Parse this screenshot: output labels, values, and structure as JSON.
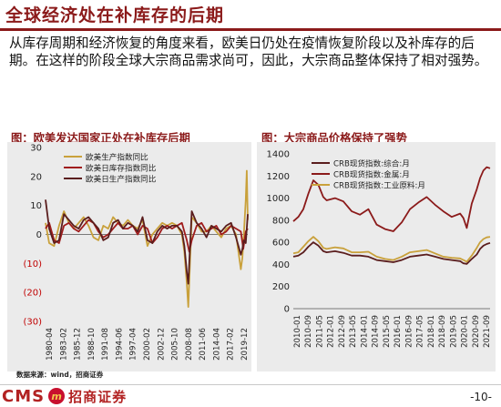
{
  "header": {
    "title": "全球经济处在补库存的后期"
  },
  "body": {
    "paragraph": "从库存周期和经济恢复的角度来看，欧美日仍处在疫情恢复阶段以及补库存的后期。在这样的阶段全球大宗商品需求尚可，因此，大宗商品整体保持了相对强势。"
  },
  "footer": {
    "source": "数据来源：wind，招商证券",
    "logo_cms": "CMS",
    "logo_cn": "招商证券",
    "page": "-10-"
  },
  "colors": {
    "brand": "#8b1a1a",
    "series_dark": "#5a1d1d",
    "series_gold": "#c9a13b",
    "series_red": "#a01c1c",
    "panel_bg": "#ebebeb"
  },
  "chart_data": [
    {
      "type": "line",
      "title": "图：欧美发达国家正处在补库存后期",
      "ylim": [
        -30,
        30
      ],
      "yticks": [
        "30",
        "20",
        "10",
        "0",
        "(10)",
        "(20)",
        "(30)"
      ],
      "xticks": [
        "1980-04",
        "1983-02",
        "1985-12",
        "1988-10",
        "1991-08",
        "1994-06",
        "1997-04",
        "2000-02",
        "2002-12",
        "2005-10",
        "2008-08",
        "2011-06",
        "2014-04",
        "2017-02",
        "2019-12"
      ],
      "xrange": [
        1980.25,
        2021.4
      ],
      "legend_position": "top-left",
      "series": [
        {
          "name": "欧美生产指数同比",
          "color": "#c9a13b",
          "x": [
            1980.25,
            1981,
            1982,
            1983,
            1984,
            1985,
            1986,
            1987,
            1988,
            1989,
            1990,
            1991,
            1992,
            1993,
            1994,
            1995,
            1996,
            1997,
            1998,
            1999,
            2000,
            2001,
            2002,
            2003,
            2004,
            2005,
            2006,
            2007,
            2008,
            2008.5,
            2009,
            2009.3,
            2010,
            2011,
            2012,
            2013,
            2014,
            2015,
            2016,
            2017,
            2018,
            2019,
            2020,
            2020.3,
            2020.6,
            2021,
            2021.2,
            2021.4
          ],
          "y": [
            4,
            -3,
            -4,
            3,
            8,
            4,
            2,
            4,
            6,
            3,
            -1,
            -2,
            3,
            2,
            6,
            4,
            3,
            5,
            3,
            2,
            5,
            -4,
            0,
            2,
            4,
            3,
            4,
            3,
            0,
            -6,
            -17,
            -25,
            6,
            4,
            1,
            1,
            3,
            1,
            -1,
            2,
            3,
            0,
            -12,
            -8,
            0,
            12,
            22,
            5
          ]
        },
        {
          "name": "欧美日库存指数同比",
          "color": "#a01c1c",
          "x": [
            1980.25,
            1981,
            1982,
            1983,
            1984,
            1985,
            1986,
            1987,
            1988,
            1989,
            1990,
            1991,
            1992,
            1993,
            1994,
            1995,
            1996,
            1997,
            1998,
            1999,
            2000,
            2001,
            2002,
            2003,
            2004,
            2005,
            2006,
            2007,
            2008,
            2009,
            2009.5,
            2010,
            2011,
            2012,
            2013,
            2014,
            2015,
            2016,
            2017,
            2018,
            2019,
            2020,
            2020.5,
            2021,
            2021.4
          ],
          "y": [
            2,
            4,
            -2,
            -3,
            3,
            4,
            2,
            1,
            3,
            5,
            4,
            1,
            -1,
            0,
            2,
            4,
            2,
            2,
            3,
            0,
            3,
            2,
            -3,
            -1,
            2,
            3,
            2,
            3,
            4,
            -2,
            -6,
            -2,
            3,
            4,
            1,
            2,
            3,
            0,
            1,
            3,
            2,
            1,
            -5,
            1,
            2
          ]
        },
        {
          "name": "欧美日生产指数同比",
          "color": "#5a1d1d",
          "x": [
            1980.25,
            1981,
            1982,
            1983,
            1984,
            1985,
            1986,
            1987,
            1988,
            1989,
            1990,
            1991,
            1992,
            1993,
            1994,
            1995,
            1996,
            1997,
            1998,
            1999,
            2000,
            2001,
            2002,
            2003,
            2004,
            2005,
            2006,
            2007,
            2008,
            2008.5,
            2009,
            2009.3,
            2010,
            2011,
            2012,
            2013,
            2014,
            2015,
            2016,
            2017,
            2018,
            2019,
            2020,
            2020.3,
            2020.6,
            2021,
            2021.2,
            2021.4
          ],
          "y": [
            12,
            2,
            -3,
            -2,
            7,
            5,
            3,
            2,
            5,
            6,
            4,
            2,
            -2,
            -1,
            4,
            5,
            2,
            4,
            3,
            1,
            6,
            -2,
            -3,
            1,
            3,
            2,
            3,
            3,
            1,
            -4,
            -13,
            -17,
            8,
            4,
            2,
            -1,
            3,
            2,
            1,
            3,
            4,
            -1,
            -7,
            -5,
            -2,
            -3,
            2,
            7
          ]
        }
      ]
    },
    {
      "type": "line",
      "title": "图：大宗商品价格保持了强势",
      "ylim": [
        0,
        1400
      ],
      "yticks": [
        "1400",
        "1200",
        "1000",
        "800",
        "600",
        "400",
        "200",
        "0"
      ],
      "xticks": [
        "2010-01",
        "2010-09",
        "2011-05",
        "2012-01",
        "2012-09",
        "2013-05",
        "2014-01",
        "2014-09",
        "2015-05",
        "2016-01",
        "2016-09",
        "2017-05",
        "2018-01",
        "2018-09",
        "2019-05",
        "2020-01",
        "2020-09",
        "2021-09"
      ],
      "xrange": [
        2010.0,
        2021.8
      ],
      "legend_position": "top-left",
      "series": [
        {
          "name": "CRB现货指数:综合:月",
          "color": "#5a1d1d",
          "x": [
            2010.0,
            2010.3,
            2010.6,
            2010.9,
            2011.2,
            2011.5,
            2011.8,
            2012.0,
            2012.5,
            2013.0,
            2013.5,
            2014.0,
            2014.5,
            2015.0,
            2015.5,
            2016.0,
            2016.5,
            2017.0,
            2017.5,
            2018.0,
            2018.5,
            2019.0,
            2019.5,
            2020.0,
            2020.2,
            2020.4,
            2020.7,
            2021.0,
            2021.2,
            2021.4,
            2021.6,
            2021.8
          ],
          "y": [
            470,
            480,
            510,
            560,
            600,
            570,
            520,
            510,
            520,
            505,
            480,
            480,
            470,
            440,
            430,
            420,
            440,
            470,
            480,
            490,
            470,
            450,
            440,
            430,
            410,
            405,
            450,
            490,
            540,
            570,
            585,
            595
          ]
        },
        {
          "name": "CRB现货指数:金属:月",
          "color": "#8b1a1a",
          "x": [
            2010.0,
            2010.3,
            2010.6,
            2010.9,
            2011.2,
            2011.5,
            2011.8,
            2012.0,
            2012.5,
            2013.0,
            2013.5,
            2014.0,
            2014.5,
            2015.0,
            2015.5,
            2016.0,
            2016.5,
            2017.0,
            2017.5,
            2018.0,
            2018.5,
            2019.0,
            2019.5,
            2020.0,
            2020.2,
            2020.4,
            2020.7,
            2021.0,
            2021.2,
            2021.4,
            2021.6,
            2021.8
          ],
          "y": [
            790,
            830,
            900,
            1040,
            1160,
            1120,
            1010,
            980,
            1000,
            970,
            880,
            850,
            900,
            760,
            720,
            700,
            780,
            900,
            960,
            1010,
            940,
            880,
            830,
            860,
            820,
            730,
            950,
            1080,
            1180,
            1250,
            1280,
            1270
          ]
        },
        {
          "name": "CRB现货指数:工业原料:月",
          "color": "#c9a13b",
          "x": [
            2010.0,
            2010.3,
            2010.6,
            2010.9,
            2011.2,
            2011.5,
            2011.8,
            2012.0,
            2012.5,
            2013.0,
            2013.5,
            2014.0,
            2014.5,
            2015.0,
            2015.5,
            2016.0,
            2016.5,
            2017.0,
            2017.5,
            2018.0,
            2018.5,
            2019.0,
            2019.5,
            2020.0,
            2020.2,
            2020.4,
            2020.7,
            2021.0,
            2021.2,
            2021.4,
            2021.6,
            2021.8
          ],
          "y": [
            500,
            510,
            560,
            610,
            650,
            610,
            550,
            540,
            555,
            545,
            510,
            510,
            515,
            470,
            450,
            440,
            470,
            510,
            520,
            530,
            500,
            470,
            460,
            455,
            440,
            425,
            480,
            550,
            600,
            630,
            645,
            650
          ]
        }
      ]
    }
  ]
}
